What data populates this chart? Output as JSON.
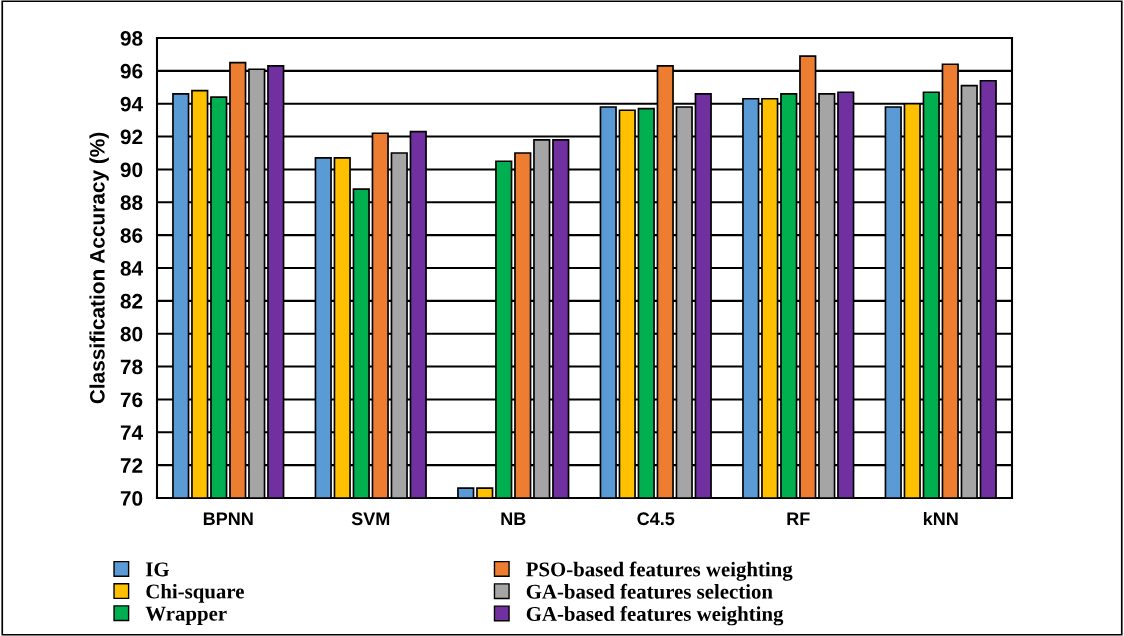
{
  "chart_data": {
    "type": "bar",
    "ylabel": "Classification Accuracy (%)",
    "categories": [
      "BPNN",
      "SVM",
      "NB",
      "C4.5",
      "RF",
      "kNN"
    ],
    "series": [
      {
        "name": "IG",
        "color": "#5b9bd5",
        "values": [
          94.6,
          90.7,
          70.6,
          93.8,
          94.3,
          93.8
        ]
      },
      {
        "name": "Chi-square",
        "color": "#ffc000",
        "values": [
          94.8,
          90.7,
          70.6,
          93.6,
          94.3,
          94.0
        ]
      },
      {
        "name": "Wrapper",
        "color": "#00b050",
        "values": [
          94.4,
          88.8,
          90.5,
          93.7,
          94.6,
          94.7
        ]
      },
      {
        "name": "PSO-based features weighting",
        "color": "#ed7d31",
        "values": [
          96.5,
          92.2,
          91.0,
          96.3,
          96.9,
          96.4
        ]
      },
      {
        "name": "GA-based features selection",
        "color": "#a5a5a5",
        "values": [
          96.1,
          91.0,
          91.8,
          93.8,
          94.6,
          95.1
        ]
      },
      {
        "name": "GA-based features weighting",
        "color": "#7030a0",
        "values": [
          96.3,
          92.3,
          91.8,
          94.6,
          94.7,
          95.4
        ]
      }
    ],
    "ylim": [
      70,
      98
    ],
    "yticks": [
      70,
      72,
      74,
      76,
      78,
      80,
      82,
      84,
      86,
      88,
      90,
      92,
      94,
      96,
      98
    ],
    "grid": "y",
    "legend": "bottom"
  }
}
